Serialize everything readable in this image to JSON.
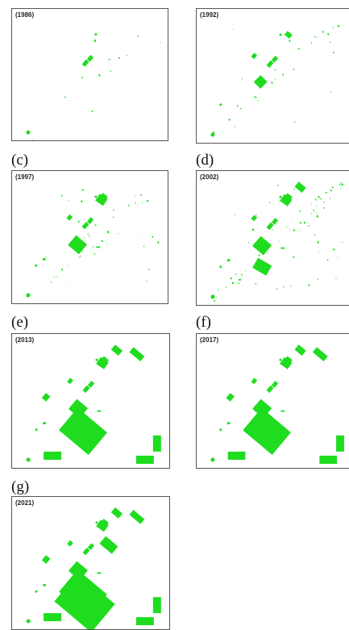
{
  "colors": {
    "vegetation": "#1fdc1f",
    "border": "#555555"
  },
  "panels": [
    {
      "id": "a",
      "label": "",
      "year": "(1986)",
      "level": 1
    },
    {
      "id": "b",
      "label": "",
      "year": "(1992)",
      "level": 2
    },
    {
      "id": "c",
      "label": "(c)",
      "year": "(1997)",
      "level": 3
    },
    {
      "id": "d",
      "label": "(d)",
      "year": "(2002)",
      "level": 4
    },
    {
      "id": "e",
      "label": "(e)",
      "year": "(2013)",
      "level": 6
    },
    {
      "id": "f",
      "label": "(f)",
      "year": "(2017)",
      "level": 6
    },
    {
      "id": "g",
      "label": "(g)",
      "year": "(2021)",
      "level": 7
    }
  ]
}
